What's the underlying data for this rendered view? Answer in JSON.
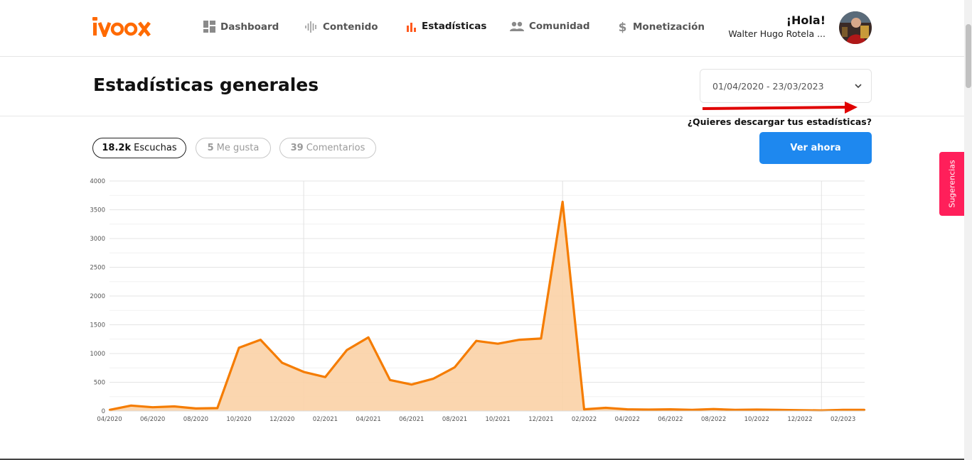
{
  "header": {
    "logo_text": "ivoox",
    "nav": [
      {
        "label": "Dashboard",
        "icon": "dashboard-grid-icon",
        "active": false
      },
      {
        "label": "Contenido",
        "icon": "waveform-icon",
        "active": false
      },
      {
        "label": "Estadísticas",
        "icon": "bar-chart-icon",
        "active": true
      },
      {
        "label": "Comunidad",
        "icon": "people-icon",
        "active": false
      },
      {
        "label": "Monetización",
        "icon": "dollar-icon",
        "active": false
      }
    ],
    "greeting": "¡Hola!",
    "user_name": "Walter Hugo Rotela ..."
  },
  "page": {
    "title": "Estadísticas generales",
    "date_range": "01/04/2020 - 23/03/2023",
    "download_question": "¿Quieres descargar tus estadísticas?",
    "download_button": "Ver ahora",
    "side_tab": "Sugerencias"
  },
  "metrics": [
    {
      "value": "18.2k",
      "label": "Escuchas",
      "active": true
    },
    {
      "value": "5",
      "label": "Me gusta",
      "active": false
    },
    {
      "value": "39",
      "label": "Comentarios",
      "active": false
    }
  ],
  "colors": {
    "brand": "#ff6a00",
    "accent_blue": "#1e88ef",
    "suggest_tab": "#ff1f5a",
    "series_line": "#f57c00",
    "series_fill": "#fbd1a6"
  },
  "chart_data": {
    "type": "area",
    "ylim": [
      0,
      4000
    ],
    "yticks": [
      "0",
      "500",
      "1000",
      "1500",
      "2000",
      "2500",
      "3000",
      "3500",
      "4000"
    ],
    "xtick_labels": [
      "04/2020",
      "06/2020",
      "08/2020",
      "10/2020",
      "12/2020",
      "02/2021",
      "04/2021",
      "06/2021",
      "08/2021",
      "10/2021",
      "12/2021",
      "02/2022",
      "04/2022",
      "06/2022",
      "08/2022",
      "10/2022",
      "12/2022",
      "02/2023"
    ],
    "x": [
      "04/2020",
      "05/2020",
      "06/2020",
      "07/2020",
      "08/2020",
      "09/2020",
      "10/2020",
      "11/2020",
      "12/2020",
      "01/2021",
      "02/2021",
      "03/2021",
      "04/2021",
      "05/2021",
      "06/2021",
      "07/2021",
      "08/2021",
      "09/2021",
      "10/2021",
      "11/2021",
      "12/2021",
      "01/2022",
      "02/2022",
      "03/2022",
      "04/2022",
      "05/2022",
      "06/2022",
      "07/2022",
      "08/2022",
      "09/2022",
      "10/2022",
      "11/2022",
      "12/2022",
      "01/2023",
      "02/2023",
      "03/2023"
    ],
    "values": [
      20,
      95,
      65,
      80,
      45,
      50,
      1100,
      1240,
      840,
      680,
      590,
      1060,
      1280,
      540,
      460,
      560,
      760,
      1220,
      1170,
      1240,
      1260,
      3640,
      30,
      55,
      30,
      25,
      30,
      20,
      35,
      20,
      25,
      20,
      15,
      10,
      20,
      20
    ],
    "year_dividers": [
      "01/2021",
      "01/2022",
      "01/2023"
    ],
    "grid": true,
    "legend": "none"
  }
}
